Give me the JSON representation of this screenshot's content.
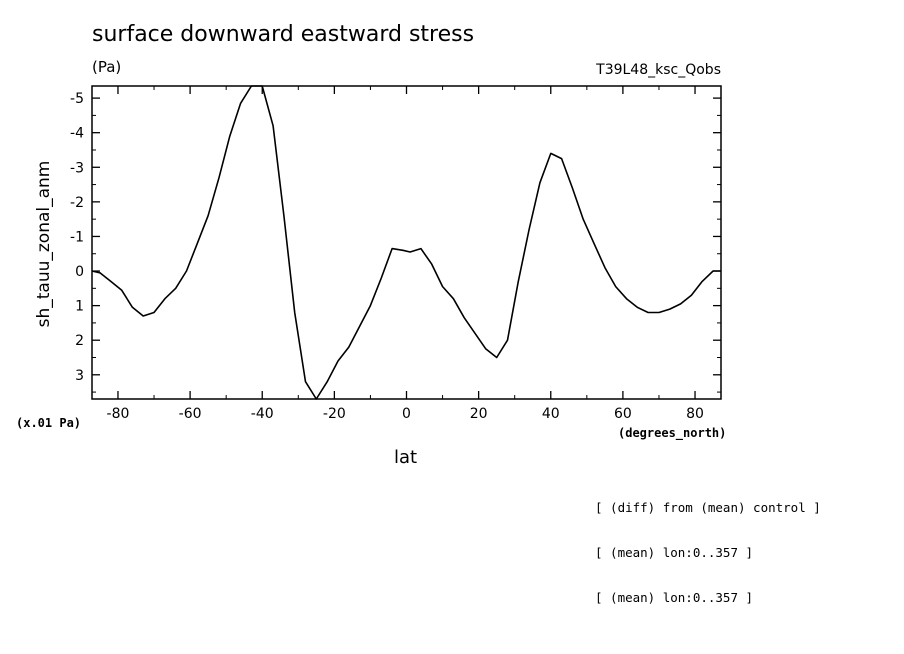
{
  "chart_data": {
    "type": "line",
    "title": "surface downward eastward stress",
    "units_label": "(Pa)",
    "run_id": "T39L48_ksc_Qobs",
    "xlabel": "lat",
    "x_units": "(degrees_north)",
    "ylabel": "sh_tauu_zonal_anm",
    "y_scale_note": "(x.01 Pa)",
    "xlim": [
      -87.2,
      87.2
    ],
    "ylim": [
      3.7,
      -5.35
    ],
    "y_inverted": true,
    "xticks": [
      -80,
      -60,
      -40,
      -20,
      0,
      20,
      40,
      60,
      80
    ],
    "xtick_labels": [
      "-80",
      "-60",
      "-40",
      "-20",
      "0",
      "20",
      "40",
      "60",
      "80"
    ],
    "yticks": [
      3,
      2,
      1,
      0,
      -1,
      -2,
      -3,
      -4,
      -5
    ],
    "ytick_labels": [
      "3",
      "2",
      "1",
      "0",
      "-1",
      "-2",
      "-3",
      "-4",
      "-5"
    ],
    "grid": false,
    "line_color": "#000000",
    "series": [
      {
        "x": [
          -87.2,
          -85,
          -82,
          -79,
          -76,
          -73,
          -70,
          -67,
          -64,
          -61,
          -58,
          -55,
          -52,
          -49,
          -46,
          -43,
          -40,
          -37,
          -34,
          -31,
          -28,
          -25,
          -22,
          -19,
          -16,
          -13,
          -10,
          -7,
          -4,
          -1,
          1,
          4,
          7,
          10,
          13,
          16,
          19,
          22,
          25,
          28,
          31,
          34,
          37,
          40,
          43,
          46,
          49,
          52,
          55,
          58,
          61,
          64,
          67,
          70,
          73,
          76,
          79,
          82,
          85,
          87.2
        ],
        "y": [
          0.0,
          0.05,
          0.3,
          0.55,
          1.05,
          1.3,
          1.2,
          0.8,
          0.5,
          0.0,
          -0.8,
          -1.6,
          -2.7,
          -3.9,
          -4.85,
          -5.35,
          -5.35,
          -4.2,
          -1.6,
          1.2,
          3.2,
          3.7,
          3.2,
          2.6,
          2.2,
          1.6,
          1.0,
          0.2,
          -0.65,
          -0.6,
          -0.55,
          -0.65,
          -0.2,
          0.45,
          0.8,
          1.35,
          1.8,
          2.25,
          2.5,
          2.0,
          0.3,
          -1.2,
          -2.55,
          -3.4,
          -3.25,
          -2.4,
          -1.5,
          -0.8,
          -0.1,
          0.45,
          0.8,
          1.05,
          1.2,
          1.2,
          1.1,
          0.95,
          0.7,
          0.3,
          0.0,
          0.0
        ]
      }
    ]
  },
  "notes": [
    "[ (diff) from (mean) control ]",
    "[ (mean) lon:0..357 ]",
    "[ (mean) lon:0..357 ]"
  ]
}
